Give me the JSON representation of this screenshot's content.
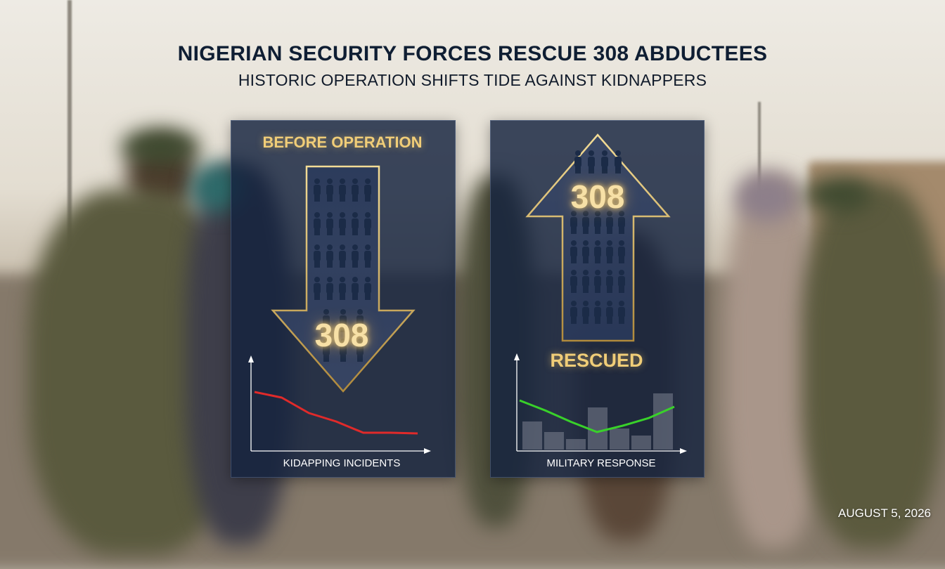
{
  "headline": {
    "title": "NIGERIAN SECURITY FORCES RESCUE 308 ABDUCTEES",
    "subtitle": "HISTORIC OPERATION SHIFTS TIDE AGAINST KIDNAPPERS"
  },
  "panel_before": {
    "heading": "BEFORE OPERATION",
    "number": "308",
    "arrow_direction": "down",
    "chart_label": "KIDAPPING INCIDENTS",
    "trend_color": "#e02a2a",
    "trend": [
      8,
      7.2,
      5,
      3.8,
      2.2,
      2.2,
      2.1
    ]
  },
  "panel_after": {
    "label": "RESCUED",
    "number": "308",
    "arrow_direction": "up",
    "chart_label": "MILITARY RESPONSE",
    "trend_color": "#39d12a",
    "trend": [
      6,
      4.4,
      2.6,
      1,
      2,
      3.2,
      5
    ],
    "bars": [
      4,
      2.5,
      1.5,
      6,
      3,
      2,
      8
    ]
  },
  "date": "AUGUST 5, 2026",
  "colors": {
    "title": "#0f1e33",
    "panel_bg": "#14223e",
    "accent_gold": "#e6c56e"
  },
  "icons": {
    "people_grid": "person-silhouette-icon"
  }
}
